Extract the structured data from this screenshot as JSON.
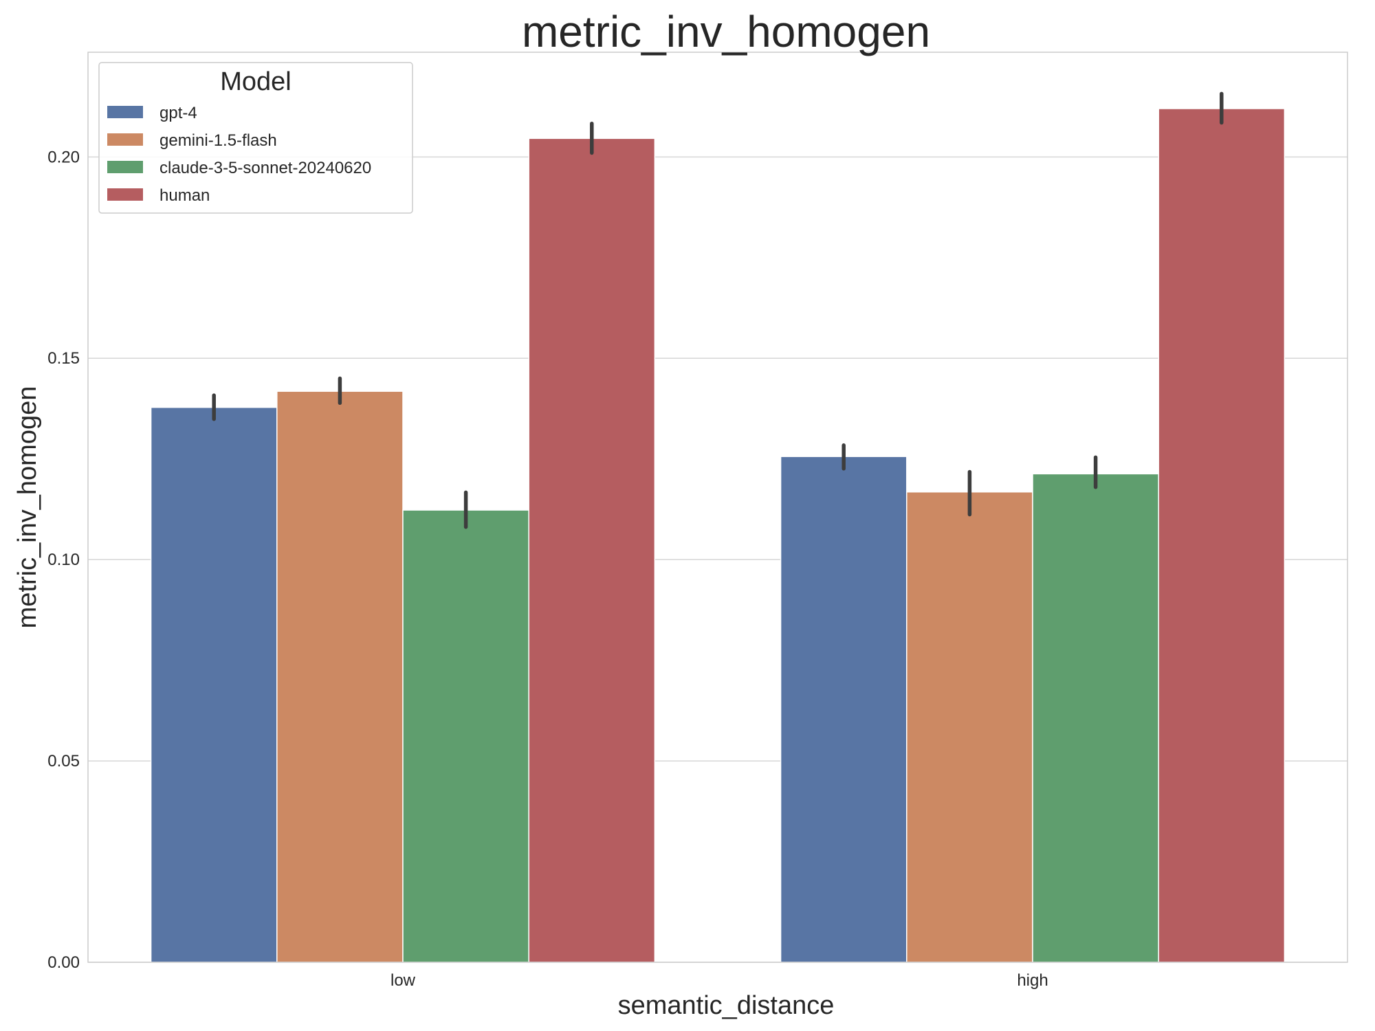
{
  "chart_data": {
    "type": "bar",
    "title": "metric_inv_homogen",
    "xlabel": "semantic_distance",
    "ylabel": "metric_inv_homogen",
    "categories": [
      "low",
      "high"
    ],
    "ylim": [
      0,
      0.226
    ],
    "yticks": [
      0.0,
      0.05,
      0.1,
      0.15,
      0.2
    ],
    "ytick_labels": [
      "0.00",
      "0.05",
      "0.10",
      "0.15",
      "0.20"
    ],
    "grid": "horizontal",
    "legend": {
      "title": "Model",
      "placement": "top-left"
    },
    "series": [
      {
        "name": "gpt-4",
        "color": "#5875a4",
        "values": [
          0.1378,
          0.1256
        ],
        "err_low": [
          0.1349,
          0.1226
        ],
        "err_high": [
          0.1408,
          0.1284
        ]
      },
      {
        "name": "gemini-1.5-flash",
        "color": "#cc8963",
        "values": [
          0.1418,
          0.1168
        ],
        "err_low": [
          0.1389,
          0.1112
        ],
        "err_high": [
          0.145,
          0.1218
        ]
      },
      {
        "name": "claude-3-5-sonnet-20240620",
        "color": "#5f9e6e",
        "values": [
          0.1123,
          0.1213
        ],
        "err_low": [
          0.1081,
          0.118
        ],
        "err_high": [
          0.1167,
          0.1254
        ]
      },
      {
        "name": "human",
        "color": "#b55d60",
        "values": [
          0.2046,
          0.212
        ],
        "err_low": [
          0.201,
          0.2085
        ],
        "err_high": [
          0.2083,
          0.2157
        ]
      }
    ]
  }
}
